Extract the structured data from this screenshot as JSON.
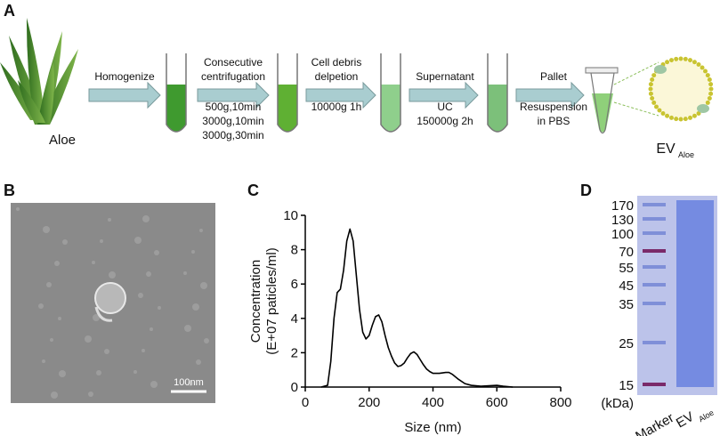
{
  "panel_a": {
    "label": "A",
    "source": "Aloe",
    "steps": [
      {
        "above": [
          "Homogenize"
        ],
        "below": []
      },
      {
        "above": [
          "Consecutive",
          "centrifugation"
        ],
        "below": [
          "500g,10min",
          "3000g,10min",
          "3000g,30min"
        ]
      },
      {
        "above": [
          "Cell debris",
          "delpetion"
        ],
        "below": [
          "10000g 1h"
        ]
      },
      {
        "above": [
          "Supernatant"
        ],
        "below": [
          "UC",
          "150000g 2h"
        ]
      },
      {
        "above": [
          "Pallet"
        ],
        "below": [
          "Resuspension",
          "in PBS"
        ]
      }
    ],
    "product": "EV",
    "product_sub": "Aloe"
  },
  "panel_b": {
    "label": "B",
    "scale_bar": "100nm"
  },
  "chart_data": {
    "type": "line",
    "panel_label": "C",
    "xlabel": "Size (nm)",
    "ylabel": [
      "Concentration",
      "(E+07 paticles/ml)"
    ],
    "x": [
      50,
      70,
      80,
      90,
      100,
      110,
      120,
      130,
      140,
      150,
      160,
      170,
      180,
      190,
      200,
      210,
      220,
      230,
      240,
      250,
      260,
      270,
      280,
      290,
      300,
      310,
      320,
      330,
      340,
      350,
      360,
      370,
      380,
      390,
      400,
      420,
      440,
      450,
      460,
      480,
      500,
      520,
      550,
      600,
      620,
      650
    ],
    "series": [
      {
        "name": "Concentration",
        "color": "#000000",
        "values": [
          0,
          0.1,
          1.5,
          4.0,
          5.5,
          5.7,
          6.8,
          8.5,
          9.2,
          8.5,
          6.5,
          4.5,
          3.2,
          2.8,
          3.0,
          3.6,
          4.1,
          4.2,
          3.8,
          3.0,
          2.3,
          1.8,
          1.4,
          1.2,
          1.25,
          1.4,
          1.7,
          1.95,
          2.05,
          1.9,
          1.6,
          1.3,
          1.05,
          0.9,
          0.8,
          0.8,
          0.85,
          0.85,
          0.75,
          0.45,
          0.2,
          0.1,
          0.05,
          0.1,
          0.05,
          0
        ]
      }
    ],
    "xlim": [
      0,
      800
    ],
    "xticks": [
      0,
      200,
      400,
      600,
      800
    ],
    "ylim": [
      0,
      10
    ],
    "yticks": [
      0,
      2,
      4,
      6,
      8,
      10
    ],
    "grid": false
  },
  "panel_d": {
    "label": "D",
    "markers": [
      170,
      130,
      100,
      70,
      55,
      45,
      35,
      25,
      15
    ],
    "unit": "(kDa)",
    "lanes": [
      "Marker",
      "EV"
    ],
    "lane_sub": "Aloe"
  }
}
